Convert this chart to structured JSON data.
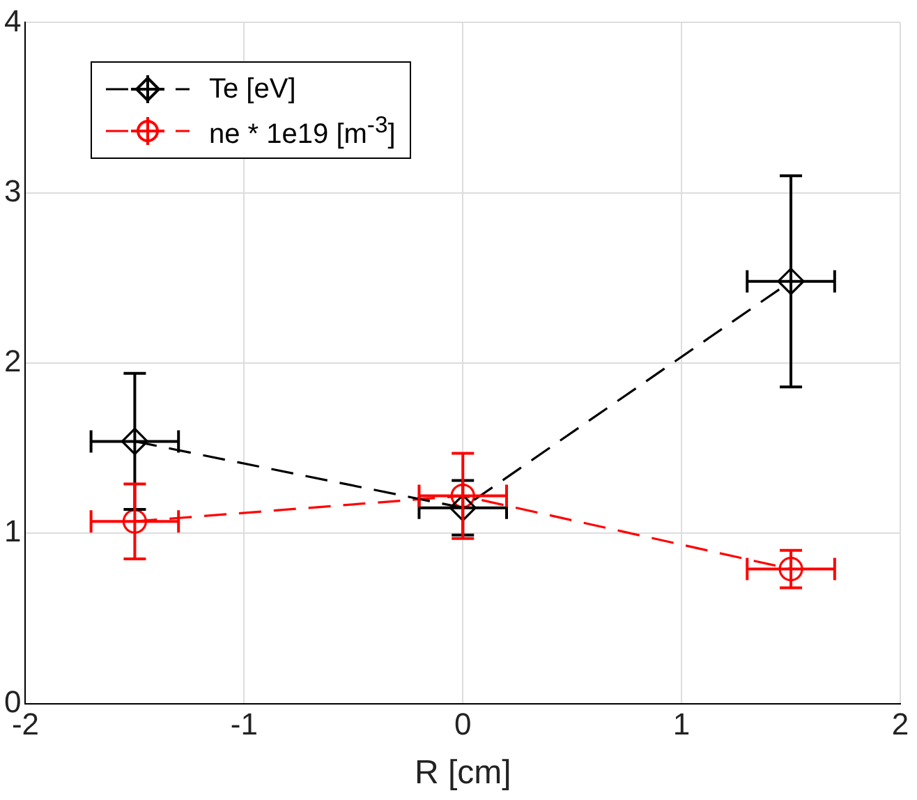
{
  "chart_data": {
    "type": "line",
    "xlabel": "R [cm]",
    "xlim": [
      -2,
      2
    ],
    "xticks": [
      -2,
      -1,
      0,
      1,
      2
    ],
    "ylim": [
      0,
      4
    ],
    "yticks": [
      0,
      1,
      2,
      3,
      4
    ],
    "grid": true,
    "legend": "top left",
    "line_style": "dashed",
    "series": [
      {
        "name": "Te [eV]",
        "color": "#000000",
        "marker": "diamond",
        "x": [
          -1.5,
          0,
          1.5
        ],
        "values": [
          1.54,
          1.15,
          2.48
        ],
        "errors": [
          0.4,
          0.16,
          0.62
        ],
        "xerrors": [
          0.2,
          0.2,
          0.2
        ]
      },
      {
        "name": "ne * 1e19 [m$^{-3}$]",
        "color": "#ff0000",
        "marker": "circle",
        "x": [
          -1.5,
          0,
          1.5
        ],
        "values": [
          1.07,
          1.22,
          0.79
        ],
        "errors": [
          0.22,
          0.25,
          0.11
        ],
        "xerrors": [
          0.2,
          0.2,
          0.2
        ]
      }
    ]
  }
}
